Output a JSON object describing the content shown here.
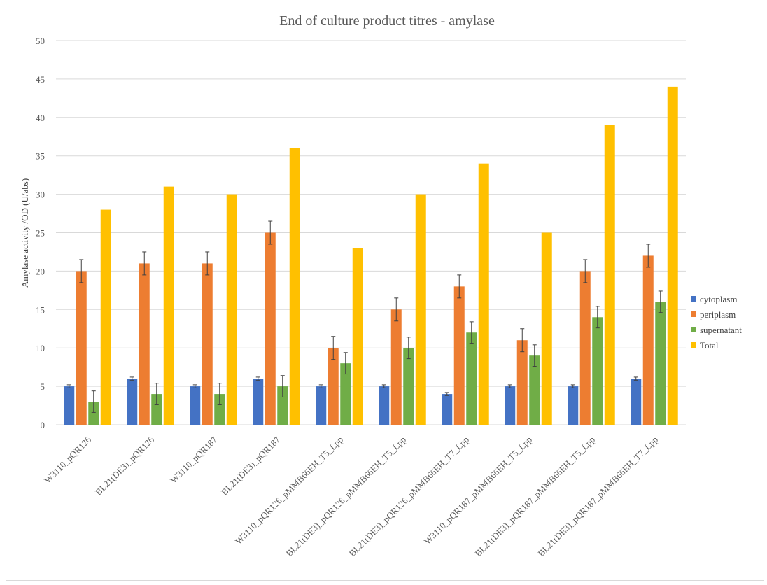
{
  "chart_data": {
    "type": "bar",
    "title": "End of culture product titres - amylase",
    "ylabel": "Amylase activity /OD (U/abs)",
    "xlabel": "",
    "ylim": [
      0,
      50
    ],
    "yticks": [
      0,
      5,
      10,
      15,
      20,
      25,
      30,
      35,
      40,
      45,
      50
    ],
    "grid": true,
    "legend_position": "right",
    "categories": [
      "W3110_pQR126",
      "BL21(DE3)_pQR126",
      "W3110_pQR187",
      "BL21(DE3)_pQR187",
      "W3110_pQR126_pMMB66EH_T5_Lpp",
      "BL21(DE3)_pQR126_pMMB66EH_T5_Lpp",
      "BL21(DE3)_pQR126_pMMB66EH_T7_Lpp",
      "W3110_pQR187_pMMB66EH_T5_Lpp",
      "BL21(DE3)_pQR187_pMMB66EH_T5_Lpp",
      "BL21(DE3)_pQR187_pMMB66EH_T7_Lpp"
    ],
    "series": [
      {
        "name": "cytoplasm",
        "color": "#4472c4",
        "values": [
          5,
          6,
          5,
          6,
          5,
          5,
          4,
          5,
          5,
          6
        ],
        "errors": [
          0.2,
          0.2,
          0.2,
          0.2,
          0.2,
          0.2,
          0.2,
          0.2,
          0.2,
          0.2
        ]
      },
      {
        "name": "periplasm",
        "color": "#ed7d31",
        "values": [
          20,
          21,
          21,
          25,
          10,
          15,
          18,
          11,
          20,
          22
        ],
        "errors": [
          1.5,
          1.5,
          1.5,
          1.5,
          1.5,
          1.5,
          1.5,
          1.5,
          1.5,
          1.5
        ]
      },
      {
        "name": "supernatant",
        "color": "#70ad47",
        "values": [
          3,
          4,
          4,
          5,
          8,
          10,
          12,
          9,
          14,
          16
        ],
        "errors": [
          1.4,
          1.4,
          1.4,
          1.4,
          1.4,
          1.4,
          1.4,
          1.4,
          1.4,
          1.4
        ]
      },
      {
        "name": "Total",
        "color": "#ffc000",
        "values": [
          28,
          31,
          30,
          36,
          23,
          30,
          34,
          25,
          39,
          44
        ],
        "errors": null
      }
    ]
  }
}
